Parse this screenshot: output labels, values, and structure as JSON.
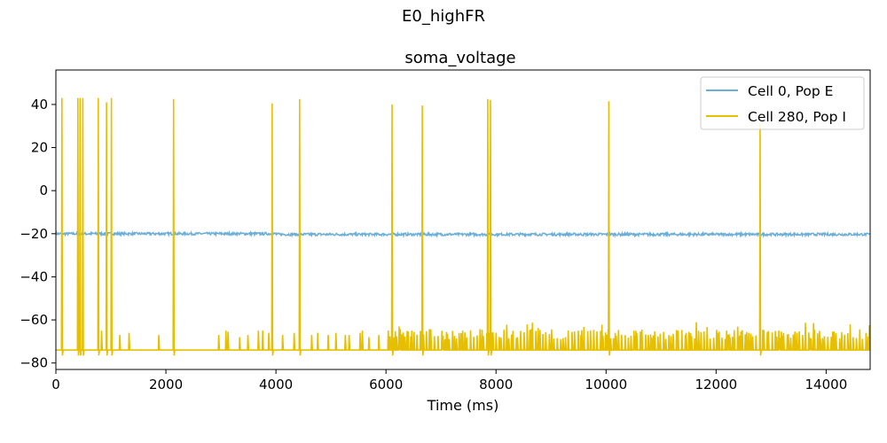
{
  "figure": {
    "suptitle": "E0_highFR"
  },
  "chart_data": {
    "type": "line",
    "title": "soma_voltage",
    "xlabel": "Time (ms)",
    "ylabel": "",
    "xlim": [
      0,
      14800
    ],
    "ylim": [
      -83,
      56
    ],
    "xticks": [
      0,
      2000,
      4000,
      6000,
      8000,
      10000,
      12000,
      14000
    ],
    "yticks": [
      -80,
      -60,
      -40,
      -20,
      0,
      20,
      40
    ],
    "grid": false,
    "legend_position": "top-right",
    "series": [
      {
        "name": "Cell 0, Pop E",
        "color": "#6baed6",
        "baseline": -20,
        "noise": 0.6
      },
      {
        "name": "Cell 280, Pop I",
        "color": "#e6c000",
        "rest": -74,
        "reset": -76.5,
        "spikes": [
          {
            "t": 110,
            "peak": 43
          },
          {
            "t": 400,
            "peak": 43
          },
          {
            "t": 440,
            "peak": 43
          },
          {
            "t": 490,
            "peak": 43
          },
          {
            "t": 770,
            "peak": 43
          },
          {
            "t": 920,
            "peak": 41
          },
          {
            "t": 1010,
            "peak": 43
          },
          {
            "t": 2140,
            "peak": 42.5
          },
          {
            "t": 3930,
            "peak": 40.5
          },
          {
            "t": 4430,
            "peak": 42.5
          },
          {
            "t": 6110,
            "peak": 40
          },
          {
            "t": 6660,
            "peak": 39.5
          },
          {
            "t": 7850,
            "peak": 42.5
          },
          {
            "t": 7900,
            "peak": 42
          },
          {
            "t": 10050,
            "peak": 41.5
          },
          {
            "t": 12800,
            "peak": 31
          }
        ],
        "epsp_events": [
          {
            "t": 830,
            "v": -65
          },
          {
            "t": 1160,
            "v": -67
          },
          {
            "t": 1330,
            "v": -66
          },
          {
            "t": 1870,
            "v": -67
          },
          {
            "t": 2960,
            "v": -67
          },
          {
            "t": 3090,
            "v": -65
          },
          {
            "t": 3130,
            "v": -65.5
          },
          {
            "t": 3340,
            "v": -68
          },
          {
            "t": 3490,
            "v": -67
          },
          {
            "t": 3680,
            "v": -65
          },
          {
            "t": 3760,
            "v": -65
          },
          {
            "t": 3870,
            "v": -66
          },
          {
            "t": 4120,
            "v": -67
          },
          {
            "t": 4330,
            "v": -66
          },
          {
            "t": 4650,
            "v": -67
          },
          {
            "t": 4760,
            "v": -66
          },
          {
            "t": 4950,
            "v": -67
          },
          {
            "t": 5090,
            "v": -66
          },
          {
            "t": 5260,
            "v": -67
          },
          {
            "t": 5330,
            "v": -67
          },
          {
            "t": 5530,
            "v": -66
          },
          {
            "t": 5570,
            "v": -65
          },
          {
            "t": 5690,
            "v": -68
          },
          {
            "t": 5870,
            "v": -67
          },
          {
            "t": 6240,
            "v": -63
          },
          {
            "t": 6380,
            "v": -67
          },
          {
            "t": 6470,
            "v": -65
          }
        ],
        "dense_region": {
          "start": 6000,
          "end": 14800,
          "min": -69,
          "max": -61
        }
      }
    ]
  }
}
